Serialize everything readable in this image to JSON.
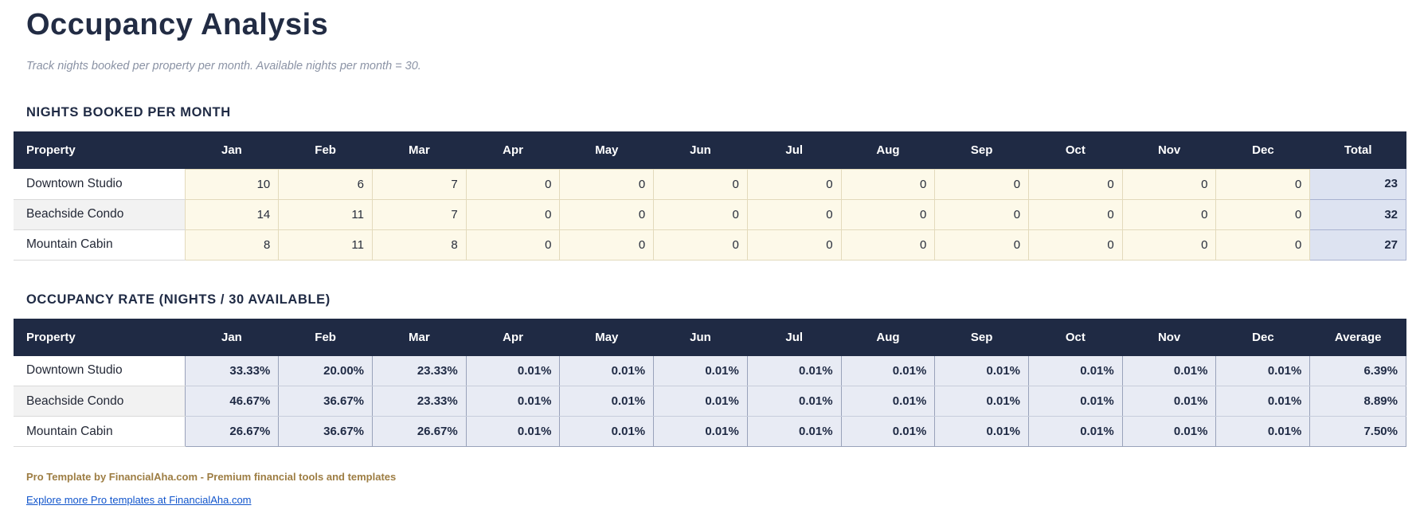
{
  "page": {
    "title": "Occupancy Analysis",
    "subtitle": "Track nights booked per property per month. Available nights per month = 30."
  },
  "colors": {
    "header_bg": "#1f2a44",
    "header_text": "#ffffff",
    "nights_cell_bg": "#fdf9e9",
    "nights_cell_border": "#e3dabc",
    "total_cell_bg": "#dde3f1",
    "rate_cell_bg": "#e8ebf4",
    "alt_row_bg": "#f2f2f2",
    "subtitle_text": "#8b93a5",
    "brand_text": "#9d7d43",
    "link_text": "#1155cc"
  },
  "months": [
    "Jan",
    "Feb",
    "Mar",
    "Apr",
    "May",
    "Jun",
    "Jul",
    "Aug",
    "Sep",
    "Oct",
    "Nov",
    "Dec"
  ],
  "nights_table": {
    "section_title": "NIGHTS BOOKED PER MONTH",
    "property_header": "Property",
    "last_col_header": "Total",
    "rows": [
      {
        "property": "Downtown Studio",
        "values": [
          "10",
          "6",
          "7",
          "0",
          "0",
          "0",
          "0",
          "0",
          "0",
          "0",
          "0",
          "0"
        ],
        "last": "23"
      },
      {
        "property": "Beachside Condo",
        "values": [
          "14",
          "11",
          "7",
          "0",
          "0",
          "0",
          "0",
          "0",
          "0",
          "0",
          "0",
          "0"
        ],
        "last": "32"
      },
      {
        "property": "Mountain Cabin",
        "values": [
          "8",
          "11",
          "8",
          "0",
          "0",
          "0",
          "0",
          "0",
          "0",
          "0",
          "0",
          "0"
        ],
        "last": "27"
      }
    ]
  },
  "rate_table": {
    "section_title": "OCCUPANCY RATE (NIGHTS / 30 AVAILABLE)",
    "property_header": "Property",
    "last_col_header": "Average",
    "rows": [
      {
        "property": "Downtown Studio",
        "values": [
          "33.33%",
          "20.00%",
          "23.33%",
          "0.01%",
          "0.01%",
          "0.01%",
          "0.01%",
          "0.01%",
          "0.01%",
          "0.01%",
          "0.01%",
          "0.01%"
        ],
        "last": "6.39%"
      },
      {
        "property": "Beachside Condo",
        "values": [
          "46.67%",
          "36.67%",
          "23.33%",
          "0.01%",
          "0.01%",
          "0.01%",
          "0.01%",
          "0.01%",
          "0.01%",
          "0.01%",
          "0.01%",
          "0.01%"
        ],
        "last": "8.89%"
      },
      {
        "property": "Mountain Cabin",
        "values": [
          "26.67%",
          "36.67%",
          "26.67%",
          "0.01%",
          "0.01%",
          "0.01%",
          "0.01%",
          "0.01%",
          "0.01%",
          "0.01%",
          "0.01%",
          "0.01%"
        ],
        "last": "7.50%"
      }
    ]
  },
  "footer": {
    "brand": "Pro Template by FinancialAha.com - Premium financial tools and templates",
    "link": "Explore more Pro templates at FinancialAha.com"
  }
}
